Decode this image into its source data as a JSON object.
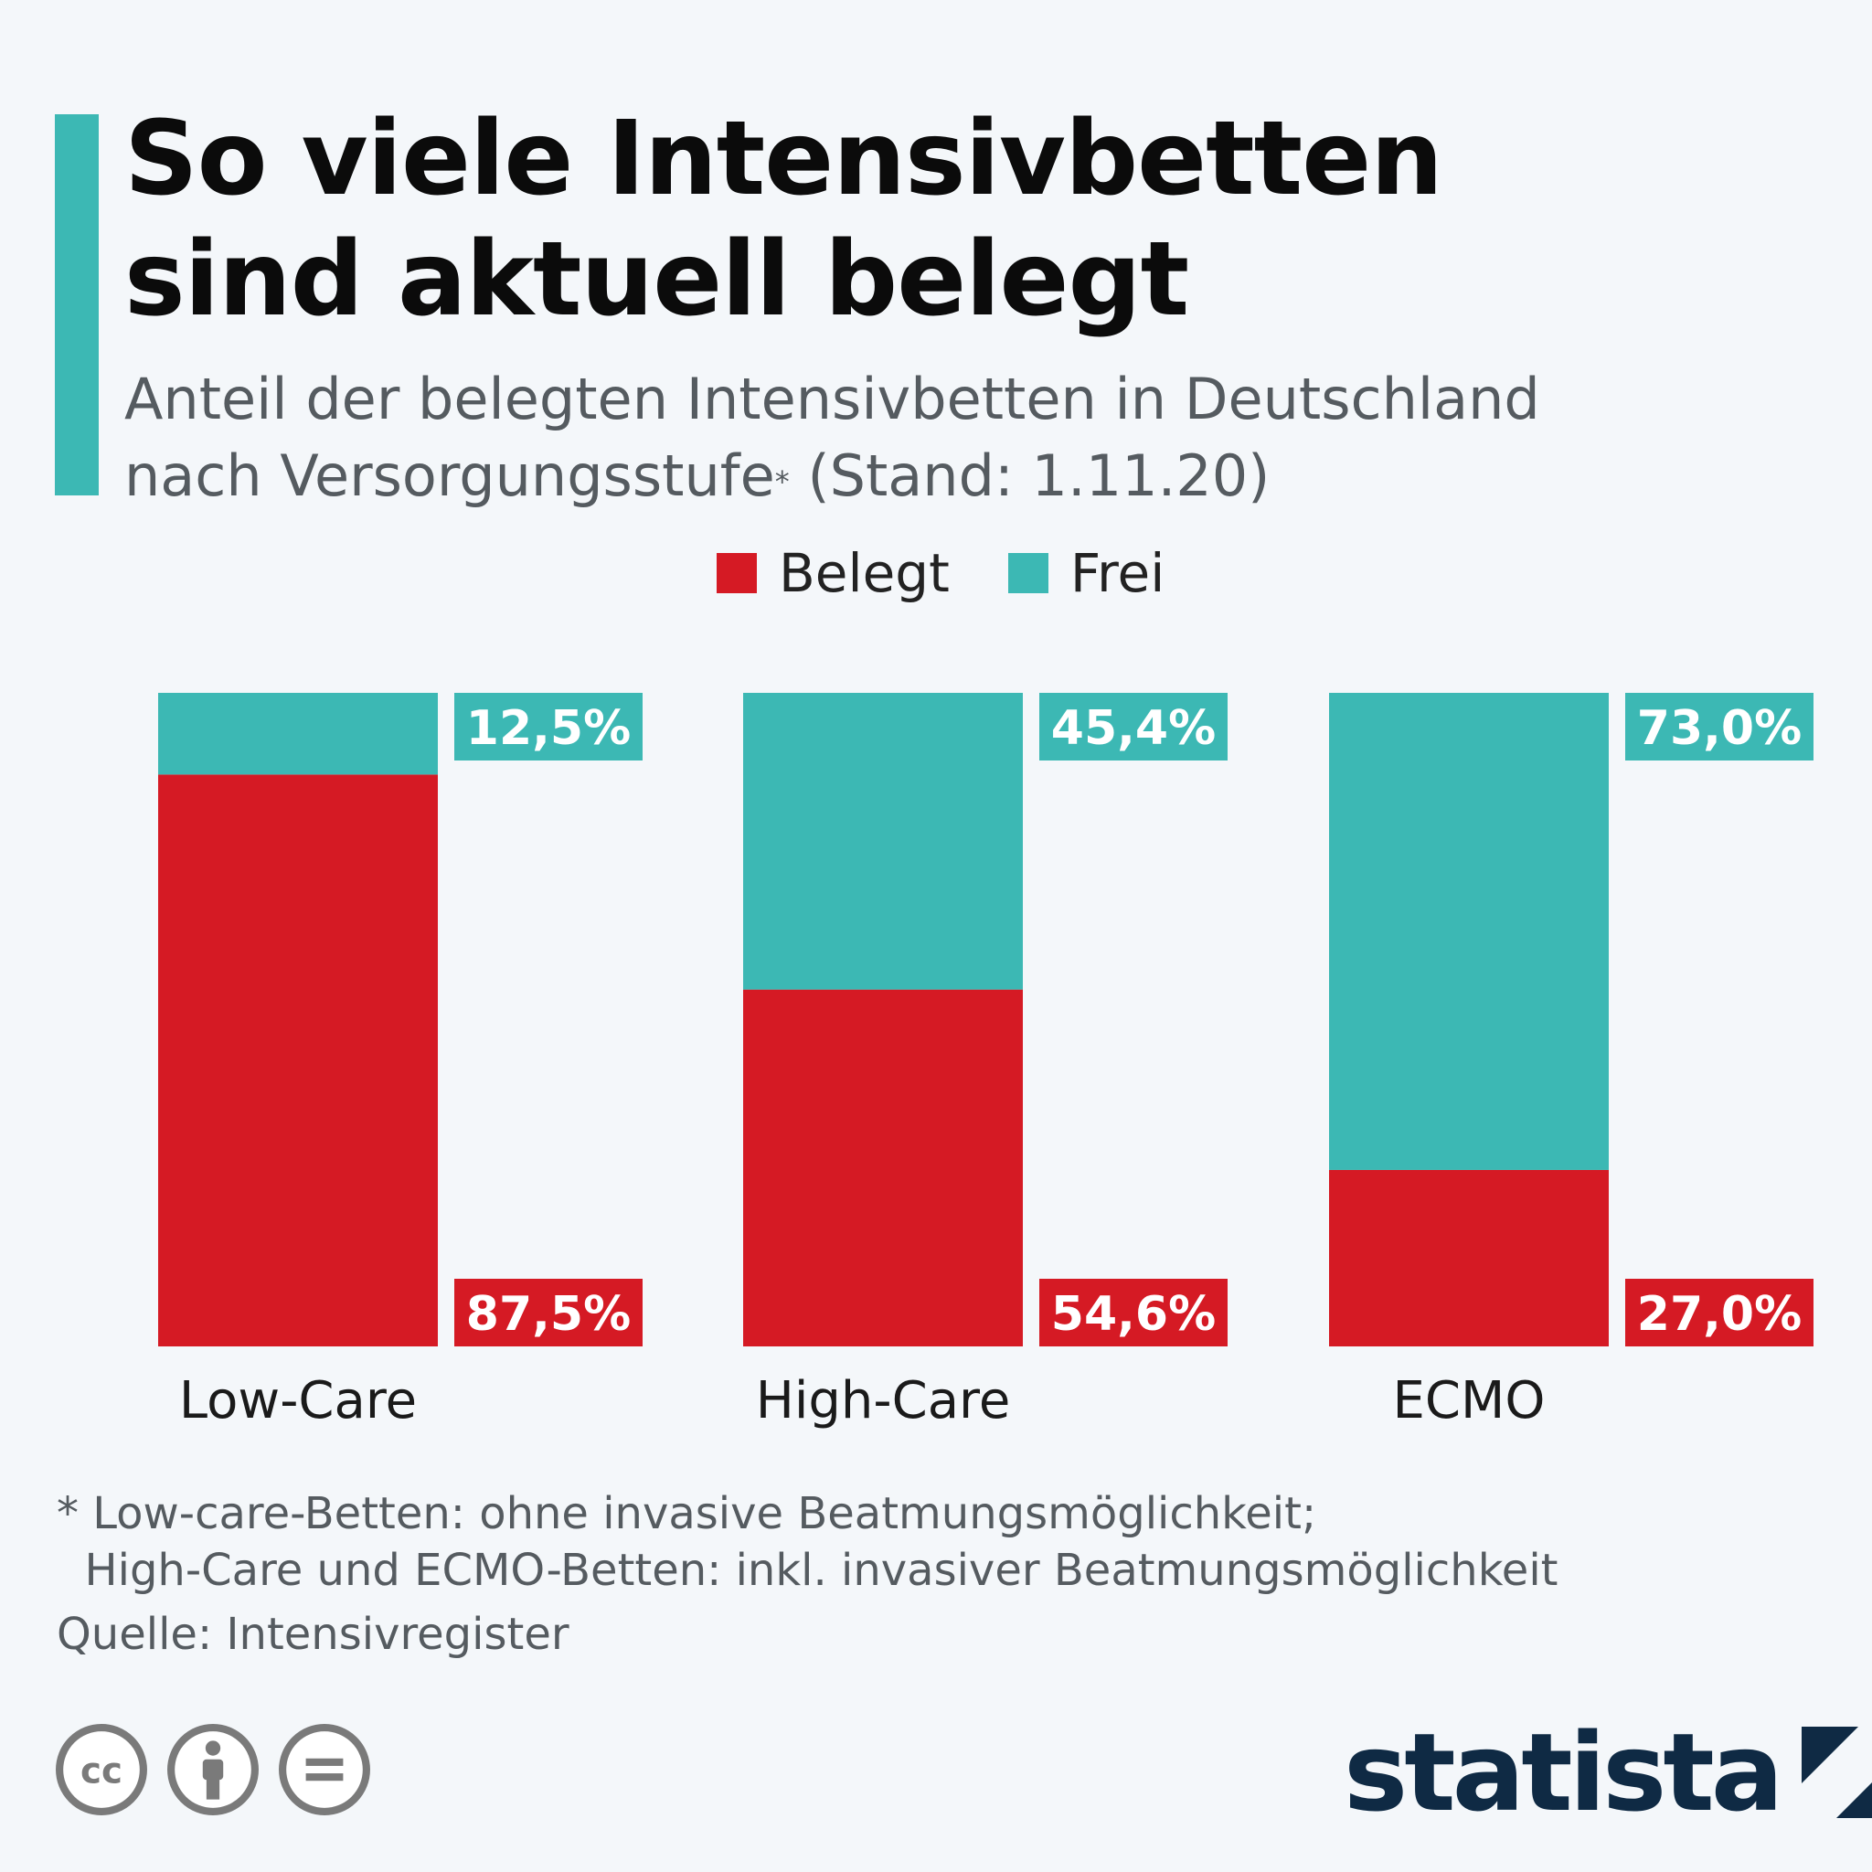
{
  "header": {
    "title_line1": "So viele Intensivbetten",
    "title_line2": "sind aktuell belegt",
    "subtitle_line1": "Anteil der belegten Intensivbetten in Deutschland",
    "subtitle_line2_pre": "nach Versorgungsstufe",
    "subtitle_asterisk": "*",
    "subtitle_line2_post": " (Stand: 1.11.20)"
  },
  "colors": {
    "belegt": "#d51a24",
    "frei": "#3cb8b4",
    "accent": "#3cb8b4",
    "brand": "#0f2a44"
  },
  "chart_data": {
    "type": "bar",
    "stacked": true,
    "categories": [
      "Low-Care",
      "High-Care",
      "ECMO"
    ],
    "series": [
      {
        "name": "Belegt",
        "values": [
          87.5,
          54.6,
          27.0
        ],
        "labels": [
          "87,5%",
          "54,6%",
          "27,0%"
        ]
      },
      {
        "name": "Frei",
        "values": [
          12.5,
          45.4,
          73.0
        ],
        "labels": [
          "12,5%",
          "45,4%",
          "73,0%"
        ]
      }
    ],
    "ylim": [
      0,
      100
    ],
    "legend_position": "top-center",
    "grid": false
  },
  "footer": {
    "footnote_line1": "* Low-care-Betten: ohne invasive Beatmungsmöglichkeit;",
    "footnote_line2": "  High-Care und ECMO-Betten: inkl. invasiver Beatmungsmöglichkeit",
    "source": "Quelle: Intensivregister",
    "license_icons": [
      "cc-icon",
      "by-attribution-icon",
      "no-derivatives-icon"
    ],
    "brand": "statista"
  }
}
